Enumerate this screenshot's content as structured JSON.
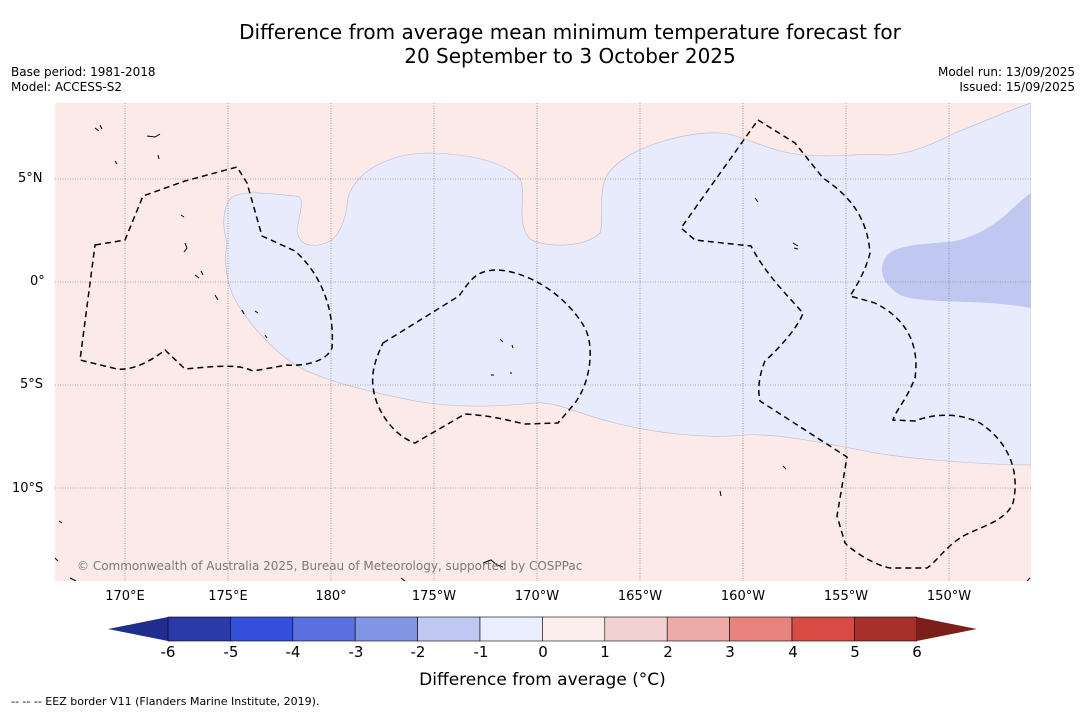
{
  "title_line1": "Difference from average mean minimum temperature forecast for",
  "title_line2": "20 September to 3 October 2025",
  "meta_left": {
    "base_period": "Base period: 1981-2018",
    "model": "Model: ACCESS-S2"
  },
  "meta_right": {
    "model_run": "Model run: 13/09/2025",
    "issued": "Issued: 15/09/2025"
  },
  "lat_labels": [
    "5°N",
    "0°",
    "5°S",
    "10°S"
  ],
  "lon_labels": [
    "170°E",
    "175°E",
    "180°",
    "175°W",
    "170°W",
    "165°W",
    "160°W",
    "155°W",
    "150°W"
  ],
  "copyright": "© Commonwealth of Australia 2025, Bureau of Meteorology, supported by COSPPac",
  "colorbar": {
    "ticks": [
      "-6",
      "-5",
      "-4",
      "-3",
      "-2",
      "-1",
      "0",
      "1",
      "2",
      "3",
      "4",
      "5",
      "6"
    ],
    "label": "Difference from average (°C)",
    "colors": [
      "#1f2e8c",
      "#2a3ba8",
      "#3450dc",
      "#5a70e0",
      "#8595e6",
      "#c0c8f2",
      "#eaedfb",
      "#fbeeed",
      "#f1d2d0",
      "#ebaaa6",
      "#e6837d",
      "#d94a44",
      "#a8302b",
      "#7a1f1a"
    ]
  },
  "footnote": "--  --  -- EEZ border V11 (Flanders Marine Institute, 2019)."
}
